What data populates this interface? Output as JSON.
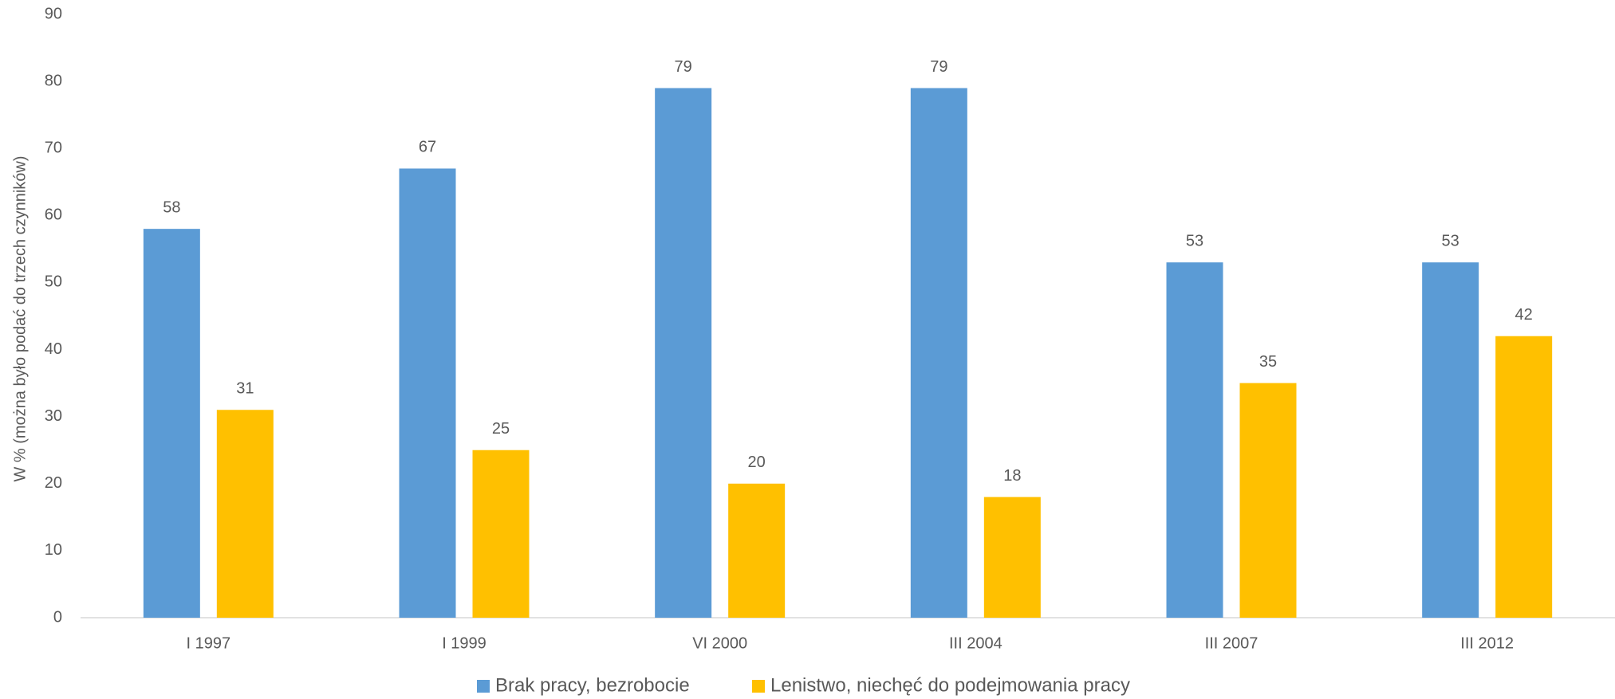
{
  "chart_data": {
    "type": "bar",
    "y_label": "W % (można było podać do trzech czynników)",
    "categories": [
      "I 1997",
      "I 1999",
      "VI 2000",
      "III 2004",
      "III 2007",
      "III 2012"
    ],
    "series": [
      {
        "name": "Brak pracy, bezrobocie",
        "color": "#5b9bd5",
        "values": [
          58,
          67,
          79,
          79,
          53,
          53
        ]
      },
      {
        "name": "Lenistwo, niechęć do podejmowania pracy",
        "color": "#ffc000",
        "values": [
          31,
          25,
          20,
          18,
          35,
          42
        ]
      }
    ],
    "ylim": [
      0,
      90
    ],
    "yticks": [
      0,
      10,
      20,
      30,
      40,
      50,
      60,
      70,
      80,
      90
    ],
    "grid": false,
    "legend": "bottom"
  }
}
